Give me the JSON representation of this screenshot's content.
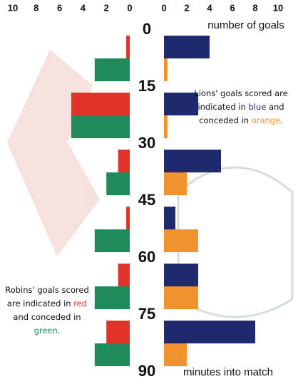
{
  "chart_data": {
    "type": "butterfly",
    "x_label": "number of goals",
    "y_label": "minutes into match",
    "ylim": [
      0,
      90
    ],
    "yticks": [
      0,
      15,
      30,
      45,
      60,
      75,
      90
    ],
    "left": {
      "xlim": [
        0,
        10
      ],
      "xticks": [
        10,
        8,
        6,
        4,
        2,
        0
      ],
      "series": [
        {
          "color": "#e0332a",
          "values": [
            0.3,
            5,
            1,
            0.3,
            1,
            2
          ]
        },
        {
          "color": "#1f8a5a",
          "values": [
            3,
            5,
            2,
            3,
            3,
            3
          ]
        }
      ],
      "note": [
        "Robins' goals scored are indicated in ",
        "red",
        " and conceded in ",
        "green",
        "."
      ]
    },
    "right": {
      "xlim": [
        0,
        10
      ],
      "xticks": [
        0,
        2,
        4,
        6,
        8,
        10
      ],
      "series": [
        {
          "color": "#1f2a6e",
          "values": [
            4,
            3,
            5,
            1,
            3,
            8
          ]
        },
        {
          "color": "#f0922e",
          "values": [
            0.3,
            0.3,
            2,
            3,
            3,
            2
          ]
        }
      ],
      "note": [
        "Lions' goals scored are indicated in ",
        "blue",
        " and conceded in ",
        "orange",
        "."
      ]
    }
  }
}
